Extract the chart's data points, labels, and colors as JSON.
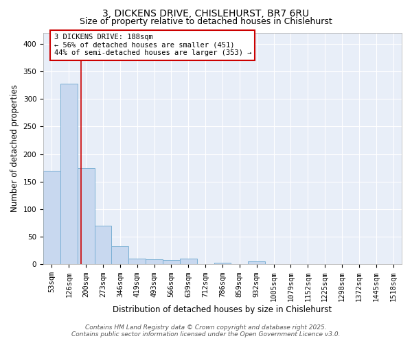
{
  "title_line1": "3, DICKENS DRIVE, CHISLEHURST, BR7 6RU",
  "title_line2": "Size of property relative to detached houses in Chislehurst",
  "xlabel": "Distribution of detached houses by size in Chislehurst",
  "ylabel": "Number of detached properties",
  "bar_color": "#c8d8ef",
  "bar_edge_color": "#7aafd4",
  "categories": [
    "53sqm",
    "126sqm",
    "200sqm",
    "273sqm",
    "346sqm",
    "419sqm",
    "493sqm",
    "566sqm",
    "639sqm",
    "712sqm",
    "786sqm",
    "859sqm",
    "932sqm",
    "1005sqm",
    "1079sqm",
    "1152sqm",
    "1225sqm",
    "1298sqm",
    "1372sqm",
    "1445sqm",
    "1518sqm"
  ],
  "values": [
    170,
    328,
    175,
    70,
    33,
    10,
    9,
    8,
    10,
    0,
    3,
    0,
    5,
    0,
    0,
    0,
    0,
    0,
    0,
    0,
    0
  ],
  "ylim": [
    0,
    420
  ],
  "yticks": [
    0,
    50,
    100,
    150,
    200,
    250,
    300,
    350,
    400
  ],
  "vline_x": 1.72,
  "vline_color": "#cc0000",
  "annotation_text": "3 DICKENS DRIVE: 188sqm\n← 56% of detached houses are smaller (451)\n44% of semi-detached houses are larger (353) →",
  "annotation_box_facecolor": "#ffffff",
  "annotation_box_edgecolor": "#cc0000",
  "footer_line1": "Contains HM Land Registry data © Crown copyright and database right 2025.",
  "footer_line2": "Contains public sector information licensed under the Open Government Licence v3.0.",
  "fig_facecolor": "#ffffff",
  "axes_facecolor": "#e8eef8",
  "grid_color": "#ffffff",
  "title_fontsize": 10,
  "subtitle_fontsize": 9,
  "axis_label_fontsize": 8.5,
  "tick_fontsize": 7.5,
  "annotation_fontsize": 7.5,
  "footer_fontsize": 6.5
}
